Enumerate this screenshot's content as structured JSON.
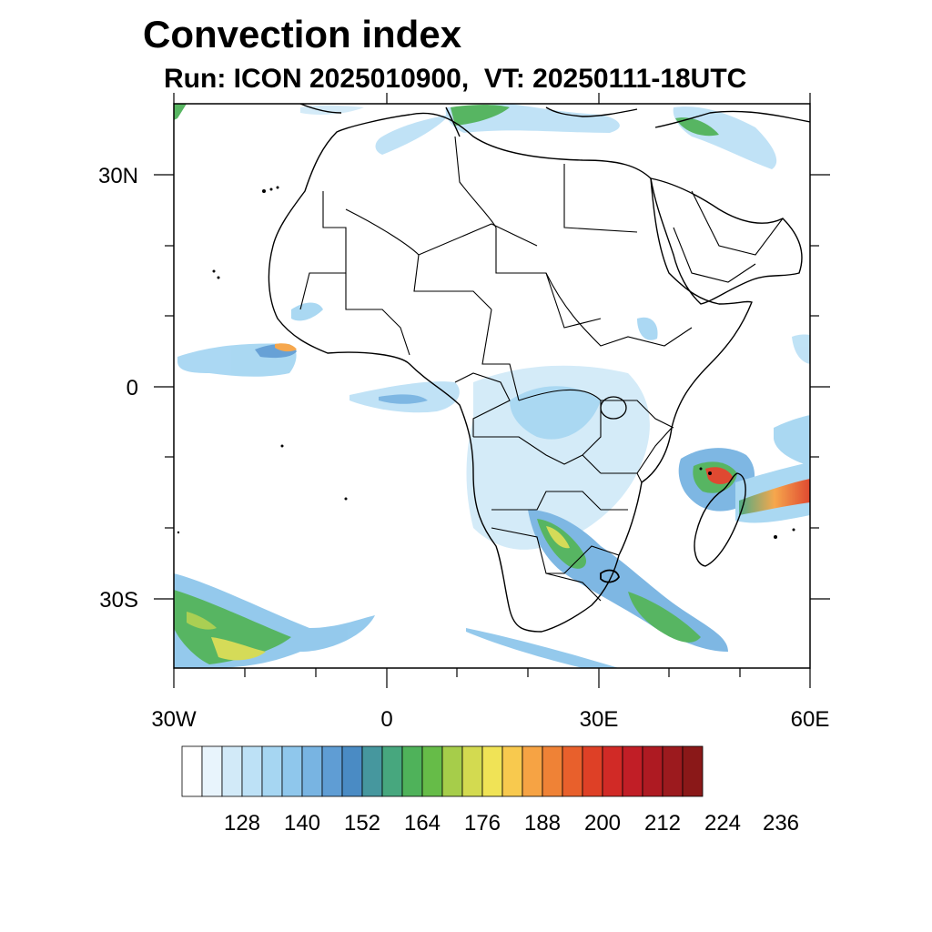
{
  "title": "Convection index",
  "subtitle": "Run: ICON 2025010900,  VT: 20250111-18UTC",
  "map": {
    "lon_range": [
      -30,
      60
    ],
    "lat_range": [
      -40,
      40
    ],
    "x_tick_labels": [
      "30W",
      "0",
      "30E",
      "60E"
    ],
    "y_tick_labels": [
      "30N",
      "0",
      "30S"
    ]
  },
  "colorbar": {
    "labels": [
      "128",
      "140",
      "152",
      "164",
      "176",
      "188",
      "200",
      "212",
      "224",
      "236"
    ],
    "colors": [
      "#ffffff",
      "#e8f4fc",
      "#d2eaf8",
      "#bde1f6",
      "#a6d6f2",
      "#8fc7ec",
      "#78b4e2",
      "#5f9dd4",
      "#4a8bc4",
      "#46979e",
      "#47a77e",
      "#4fb25a",
      "#66bc48",
      "#a6cd4a",
      "#d3da50",
      "#f0e356",
      "#f8c94e",
      "#f6a344",
      "#ef8236",
      "#e8602c",
      "#de4026",
      "#d12a26",
      "#c11e26",
      "#ae1a22",
      "#9c1a1e",
      "#8a1818"
    ]
  }
}
